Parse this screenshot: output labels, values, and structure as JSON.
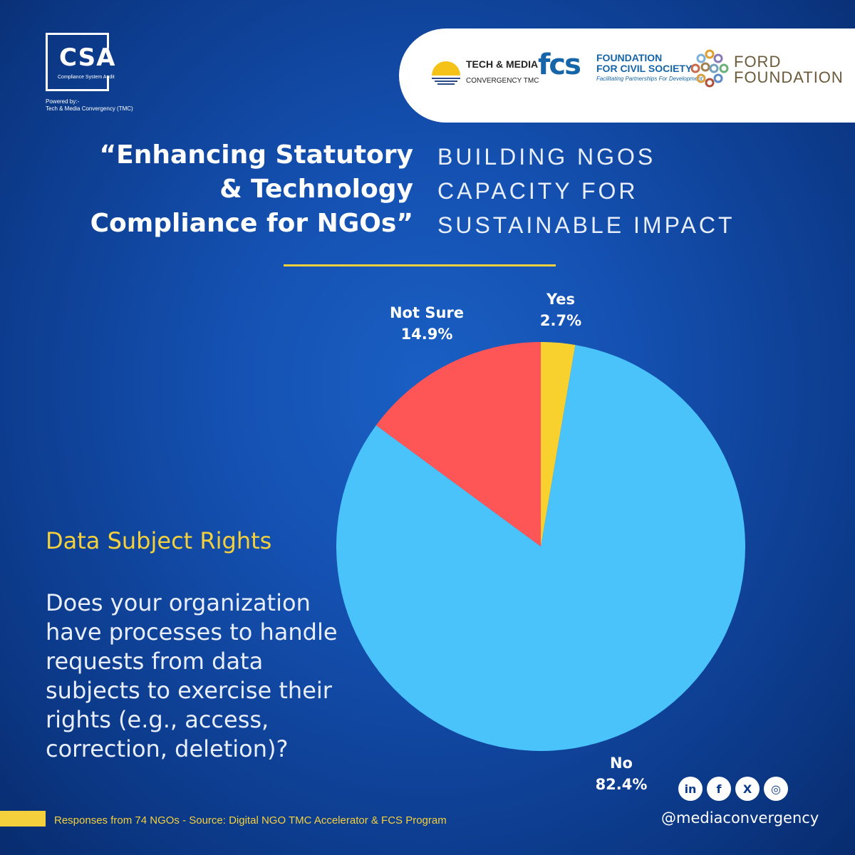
{
  "brand": {
    "csa": "CSA",
    "csa_full": "Compliance System Audit",
    "powered_by": "Powered by:-",
    "powered_by_org": "Tech & Media Convergency (TMC)"
  },
  "partners": {
    "tmc_name": "TECH & MEDIA",
    "tmc_sub": "CONVERGENCY TMC",
    "fcs_mark": "fcs",
    "fcs_line1": "FOUNDATION",
    "fcs_line2": "FOR CIVIL SOCIETY",
    "fcs_tag": "Facilitating Partnerships For Development",
    "ford_line1": "FORD",
    "ford_line2": "FOUNDATION"
  },
  "headline": {
    "line1": "“Enhancing Statutory",
    "line2": "& Technology",
    "line3": "Compliance for NGOs”"
  },
  "subline": {
    "line1": "BUILDING NGOS",
    "line2": "CAPACITY FOR",
    "line3": "SUSTAINABLE IMPACT"
  },
  "topic": "Data Subject Rights",
  "question": "Does your organization have processes to handle requests from data subjects to exercise their rights (e.g., access, correction, deletion)?",
  "source": "Responses from 74 NGOs - Source: Digital NGO TMC Accelerator & FCS Program",
  "social": {
    "linkedin": "in",
    "facebook": "f",
    "x": "X",
    "instagram": "◎",
    "handle": "@mediaconvergency"
  },
  "chart_data": {
    "type": "pie",
    "title": "Data Subject Rights",
    "slices": [
      {
        "label": "Yes",
        "value": 2.7,
        "display": "2.7%",
        "color": "#f9d12f"
      },
      {
        "label": "No",
        "value": 82.4,
        "display": "82.4%",
        "color": "#4ac3fb"
      },
      {
        "label": "Not Sure",
        "value": 14.9,
        "display": "14.9%",
        "color": "#fe5656"
      }
    ],
    "start_angle_deg": 0,
    "direction": "clockwise"
  }
}
